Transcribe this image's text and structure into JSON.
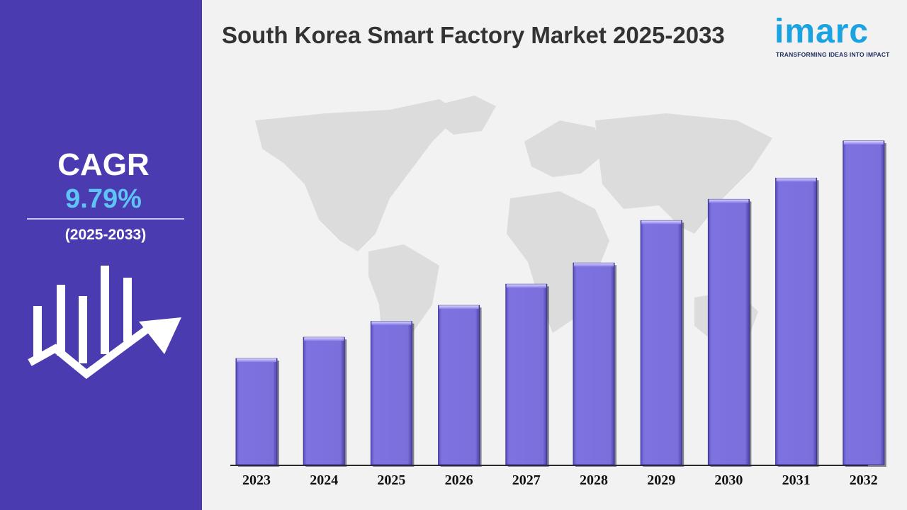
{
  "header": {
    "title": "South Korea Smart Factory Market 2025-2033"
  },
  "logo": {
    "word": "imarc",
    "tagline": "TRANSFORMING IDEAS INTO IMPACT"
  },
  "sidebar": {
    "cagr_label": "CAGR",
    "cagr_value": "9.79%",
    "period": "(2025-2033)",
    "icon": "growth-chart-arrow-icon"
  },
  "colors": {
    "sidebar_bg": "#4a3cb0",
    "bar_fill": "#7b6fdc",
    "cagr_value": "#5ec4f5",
    "logo": "#1aa3e0"
  },
  "chart_data": {
    "type": "bar",
    "title": "South Korea Smart Factory Market 2025-2033",
    "xlabel": "",
    "ylabel": "",
    "categories": [
      "2023",
      "2024",
      "2025",
      "2026",
      "2027",
      "2028",
      "2029",
      "2030",
      "2031",
      "2032"
    ],
    "values": [
      1.0,
      1.2,
      1.35,
      1.5,
      1.7,
      1.9,
      2.3,
      2.5,
      2.7,
      3.05
    ],
    "value_scale": "relative (no axis values printed)",
    "grid": false,
    "legend": "none"
  }
}
